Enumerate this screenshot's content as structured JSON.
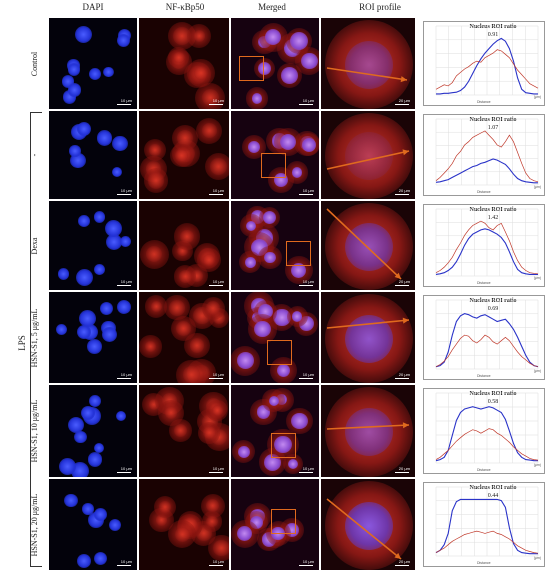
{
  "columns": [
    "DAPI",
    "NF-κBp50",
    "Merged",
    "ROI profile"
  ],
  "group_label": "LPS",
  "rows": [
    {
      "label": "Control",
      "ratio_title": "Nucleus ROI ratio",
      "ratio": "0.91"
    },
    {
      "label": "-",
      "ratio_title": "Nucleus ROI ratio",
      "ratio": "1.07"
    },
    {
      "label": "Dexa",
      "ratio_title": "Nucleus ROI ratio",
      "ratio": "1.42"
    },
    {
      "label": "HSN-S1, 5 μg/mL",
      "ratio_title": "Nucleus ROI ratio",
      "ratio": "0.69"
    },
    {
      "label": "HSN-S1, 10 μg/mL",
      "ratio_title": "Nucleus ROI ratio",
      "ratio": "0.58"
    },
    {
      "label": "HSN-S1, 20 μg/mL",
      "ratio_title": "Nucleus ROI ratio",
      "ratio": "0.44"
    }
  ],
  "scalebar_small": "10 μm",
  "scalebar_roi": "20 μm",
  "chart_axis": {
    "xlabel": "Distance",
    "xunit": "(μm)"
  },
  "colors": {
    "dapi": "#2233ff",
    "nfkb": "#d82a1c",
    "merged": "#b050d0",
    "blue_line": "#2a33c8",
    "red_line": "#c0392b",
    "roi_box": "#e06a1e"
  },
  "chart_data": [
    {
      "type": "line",
      "title": "Nucleus ROI ratio 0.91",
      "series": [
        {
          "color": "blue",
          "values": [
            2,
            2,
            3,
            3,
            4,
            5,
            8,
            14,
            24,
            38,
            52,
            64,
            74,
            82,
            90,
            96,
            100,
            95,
            82,
            60,
            30,
            10,
            4,
            3,
            2,
            2
          ]
        },
        {
          "color": "red",
          "values": [
            10,
            14,
            18,
            16,
            22,
            34,
            40,
            46,
            50,
            56,
            60,
            58,
            66,
            70,
            74,
            80,
            78,
            72,
            66,
            55,
            44,
            36,
            28,
            20,
            16,
            12
          ]
        }
      ]
    },
    {
      "type": "line",
      "title": "Nucleus ROI ratio 1.07",
      "series": [
        {
          "color": "blue",
          "values": [
            5,
            6,
            8,
            10,
            14,
            18,
            22,
            26,
            30,
            34,
            36,
            40,
            42,
            45,
            48,
            46,
            42,
            38,
            30,
            20,
            12,
            8,
            6,
            5,
            4,
            4
          ]
        },
        {
          "color": "red",
          "values": [
            8,
            14,
            22,
            30,
            40,
            54,
            62,
            74,
            80,
            88,
            92,
            96,
            100,
            92,
            84,
            74,
            70,
            80,
            92,
            80,
            60,
            40,
            22,
            12,
            8,
            6
          ]
        }
      ]
    },
    {
      "type": "line",
      "title": "Nucleus ROI ratio 1.42",
      "series": [
        {
          "color": "blue",
          "values": [
            3,
            4,
            6,
            10,
            16,
            26,
            40,
            56,
            68,
            76,
            80,
            84,
            86,
            84,
            80,
            76,
            70,
            60,
            44,
            26,
            12,
            6,
            4,
            3,
            3,
            3
          ]
        },
        {
          "color": "red",
          "values": [
            6,
            10,
            16,
            24,
            34,
            48,
            60,
            74,
            84,
            92,
            96,
            100,
            96,
            88,
            84,
            92,
            96,
            80,
            64,
            44,
            28,
            16,
            10,
            6,
            5,
            4
          ]
        }
      ]
    },
    {
      "type": "line",
      "title": "Nucleus ROI ratio 0.69",
      "series": [
        {
          "color": "blue",
          "values": [
            4,
            6,
            12,
            30,
            60,
            84,
            94,
            98,
            96,
            92,
            90,
            94,
            96,
            92,
            88,
            84,
            86,
            88,
            80,
            70,
            56,
            40,
            24,
            12,
            6,
            4
          ]
        },
        {
          "color": "red",
          "values": [
            4,
            8,
            14,
            22,
            34,
            44,
            54,
            60,
            58,
            50,
            46,
            52,
            60,
            56,
            48,
            44,
            50,
            56,
            50,
            40,
            30,
            22,
            16,
            10,
            6,
            4
          ]
        }
      ]
    },
    {
      "type": "line",
      "title": "Nucleus ROI ratio 0.58",
      "series": [
        {
          "color": "blue",
          "values": [
            4,
            6,
            10,
            22,
            48,
            74,
            88,
            94,
            96,
            98,
            96,
            94,
            96,
            98,
            96,
            92,
            88,
            76,
            56,
            34,
            18,
            10,
            6,
            5,
            4,
            4
          ]
        },
        {
          "color": "red",
          "values": [
            6,
            10,
            16,
            22,
            30,
            38,
            44,
            50,
            54,
            58,
            56,
            52,
            56,
            60,
            58,
            52,
            48,
            42,
            36,
            28,
            22,
            16,
            12,
            8,
            6,
            5
          ]
        }
      ]
    },
    {
      "type": "line",
      "title": "Nucleus ROI ratio 0.44",
      "series": [
        {
          "color": "blue",
          "values": [
            6,
            10,
            20,
            40,
            80,
            96,
            100,
            100,
            100,
            100,
            100,
            100,
            100,
            100,
            100,
            100,
            98,
            86,
            50,
            22,
            10,
            6,
            5,
            4,
            4,
            4
          ]
        },
        {
          "color": "red",
          "values": [
            6,
            10,
            14,
            20,
            26,
            30,
            34,
            38,
            40,
            42,
            44,
            42,
            40,
            42,
            44,
            40,
            38,
            34,
            30,
            24,
            18,
            14,
            10,
            8,
            6,
            5
          ]
        }
      ]
    }
  ]
}
